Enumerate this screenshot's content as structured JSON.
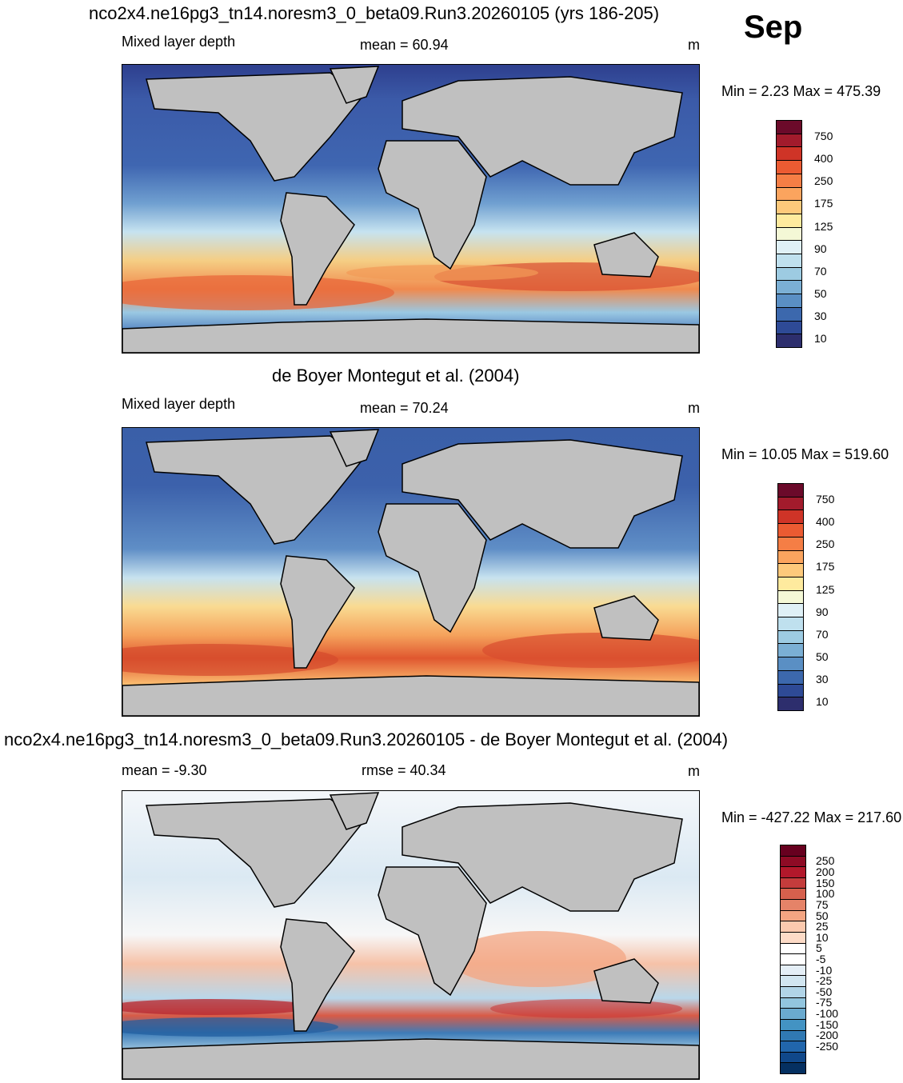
{
  "month": "Sep",
  "panels": [
    {
      "id": "model",
      "title": "nco2x4.ne16pg3_tn14.noresm3_0_beta09.Run3.20260105 (yrs 186-205)",
      "left_label": "Mixed layer depth",
      "stat_text": "mean =  60.94",
      "units": "m",
      "minmax": "Min =   2.23 Max = 475.39",
      "colorbar": {
        "colors": [
          "#6b0a2a",
          "#a21b2c",
          "#cf3427",
          "#eb5b32",
          "#f57e45",
          "#fba45e",
          "#fdc97b",
          "#feea9e",
          "#f4f8d6",
          "#dff0f6",
          "#bfe0ee",
          "#9dcbe2",
          "#7bafd4",
          "#5a8fc4",
          "#3c68ad",
          "#2e4a96",
          "#2d2e6d"
        ],
        "labels": [
          "750",
          "400",
          "250",
          "175",
          "125",
          "90",
          "70",
          "50",
          "30",
          "10"
        ]
      }
    },
    {
      "id": "obs",
      "title": "de Boyer Montegut et al. (2004)",
      "left_label": "Mixed layer depth",
      "stat_text": "mean =  70.24",
      "units": "m",
      "minmax": "Min =  10.05 Max = 519.60",
      "colorbar": {
        "colors": [
          "#6b0a2a",
          "#a21b2c",
          "#cf3427",
          "#eb5b32",
          "#f57e45",
          "#fba45e",
          "#fdc97b",
          "#feea9e",
          "#f4f8d6",
          "#dff0f6",
          "#bfe0ee",
          "#9dcbe2",
          "#7bafd4",
          "#5a8fc4",
          "#3c68ad",
          "#2e4a96",
          "#2d2e6d"
        ],
        "labels": [
          "750",
          "400",
          "250",
          "175",
          "125",
          "90",
          "70",
          "50",
          "30",
          "10"
        ]
      }
    },
    {
      "id": "diff",
      "title": "nco2x4.ne16pg3_tn14.noresm3_0_beta09.Run3.20260105 - de Boyer Montegut et al. (2004)",
      "left_label": "mean =  -9.30",
      "stat_text": "rmse =  40.34",
      "units": "m",
      "minmax": "Min = -427.22 Max = 217.60",
      "colorbar": {
        "colors": [
          "#67001f",
          "#8e0b25",
          "#b2182b",
          "#c43c3c",
          "#d6604d",
          "#e58368",
          "#f4a582",
          "#fbc9ae",
          "#fddbc7",
          "#ffffff",
          "#ffffff",
          "#e4eef6",
          "#d1e5f0",
          "#b1d4e7",
          "#92c5de",
          "#6aaacf",
          "#4393c3",
          "#3079b3",
          "#2166ac",
          "#10488a",
          "#053061"
        ],
        "labels": [
          "250",
          "200",
          "150",
          "100",
          "75",
          "50",
          "25",
          "10",
          "5",
          "-5",
          "-10",
          "-25",
          "-50",
          "-75",
          "-100",
          "-150",
          "-200",
          "-250"
        ]
      }
    }
  ]
}
